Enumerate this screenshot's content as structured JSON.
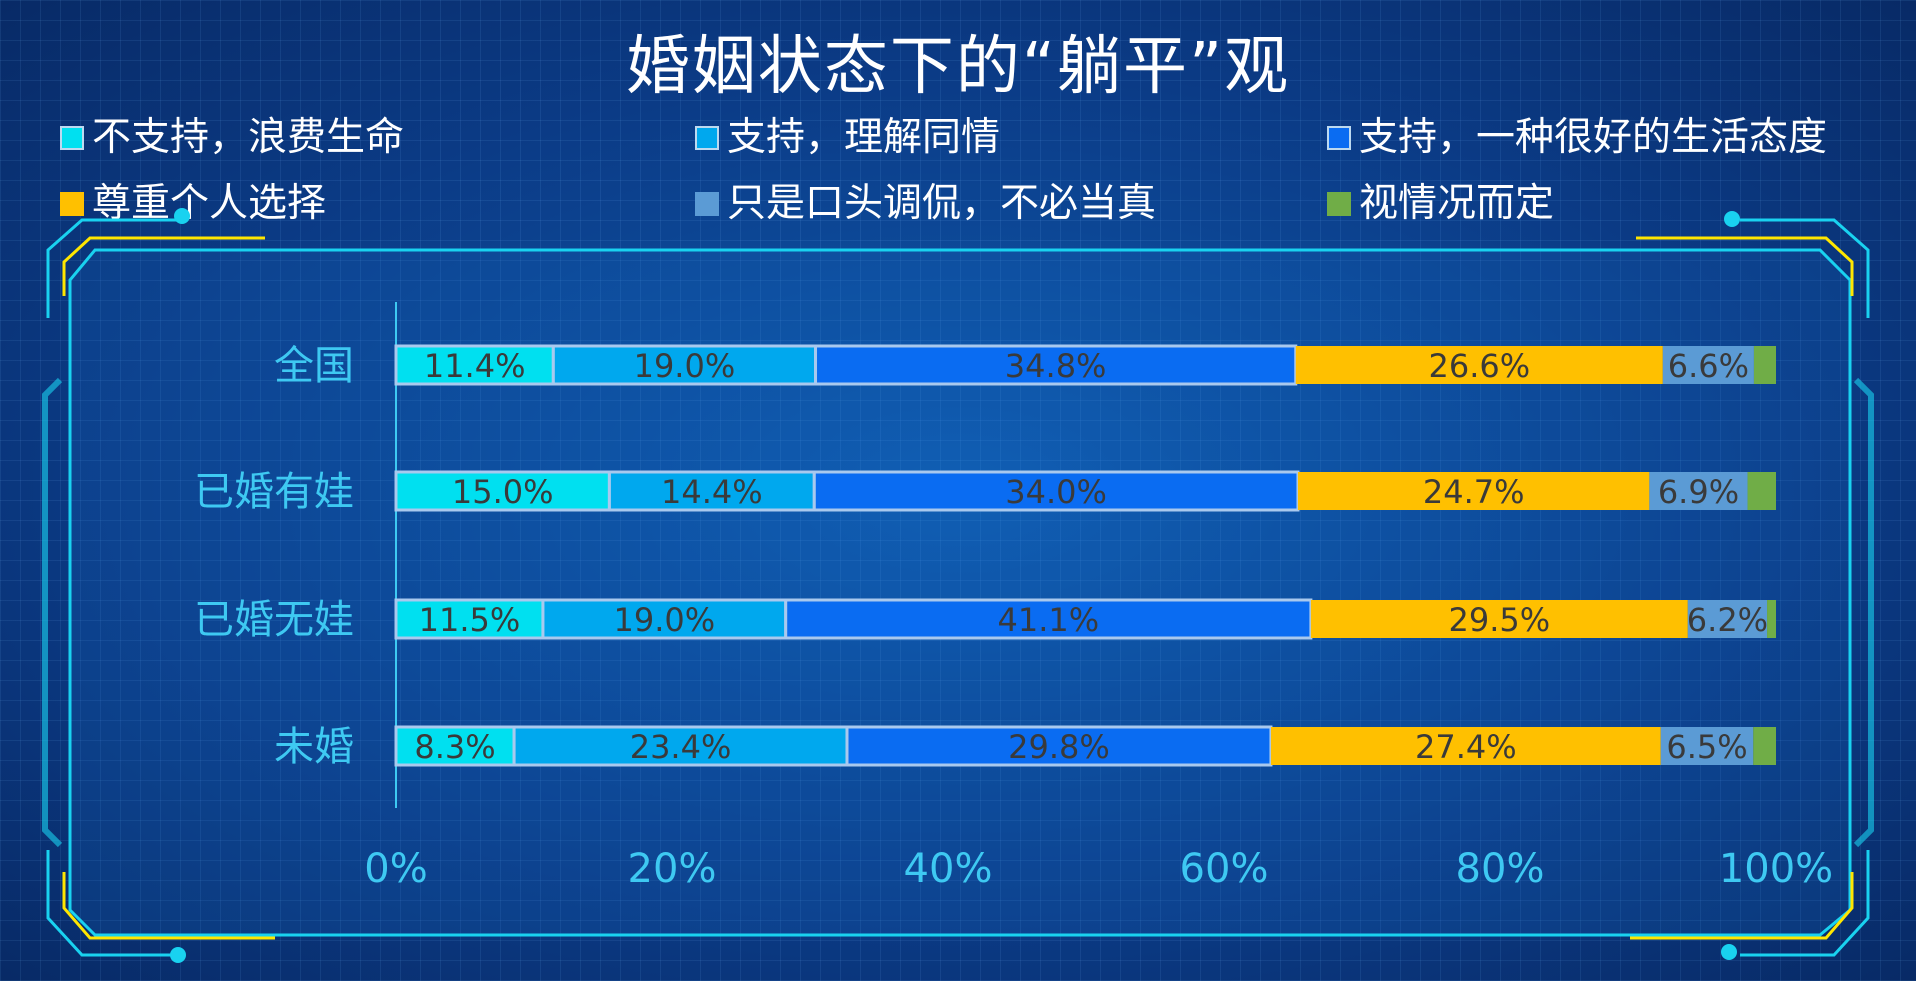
{
  "chart_data": {
    "type": "bar",
    "orientation": "horizontal",
    "stacked": "percent",
    "title": "婚姻状态下的“躺平”观",
    "categories": [
      "全国",
      "已婚有娃",
      "已婚无娃",
      "未婚"
    ],
    "series": [
      {
        "name": "不支持，浪费生命",
        "color": "#00e0f0",
        "values": [
          11.4,
          15.0,
          11.5,
          8.3
        ],
        "labels": [
          "11.4%",
          "15.0%",
          "11.5%",
          "8.3%"
        ]
      },
      {
        "name": "支持，理解同情",
        "color": "#00a8ee",
        "values": [
          19.0,
          14.4,
          19.0,
          23.4
        ],
        "labels": [
          "19.0%",
          "14.4%",
          "19.0%",
          "23.4%"
        ]
      },
      {
        "name": "支持，一种很好的生活态度",
        "color": "#0a6cf2",
        "values": [
          34.8,
          34.0,
          41.1,
          29.8
        ],
        "labels": [
          "34.8%",
          "34.0%",
          "41.1%",
          "29.8%"
        ]
      },
      {
        "name": "尊重个人选择",
        "color": "#ffc000",
        "values": [
          26.6,
          24.7,
          29.5,
          27.4
        ],
        "labels": [
          "26.6%",
          "24.7%",
          "29.5%",
          "27.4%"
        ]
      },
      {
        "name": "只是口头调侃，不必当真",
        "color": "#5b9bd5",
        "values": [
          6.6,
          6.9,
          6.2,
          6.5
        ],
        "labels": [
          "6.6%",
          "6.9%",
          "6.2%",
          "6.5%"
        ]
      },
      {
        "name": "视情况而定",
        "color": "#70ad47",
        "values": [
          1.6,
          2.0,
          0.7,
          1.6
        ],
        "labels": [
          "",
          "",
          "",
          ""
        ]
      }
    ],
    "x_ticks": [
      "0%",
      "20%",
      "40%",
      "60%",
      "80%",
      "100%"
    ],
    "xlim": [
      0,
      100
    ],
    "legend_position": "top",
    "grid": false
  }
}
